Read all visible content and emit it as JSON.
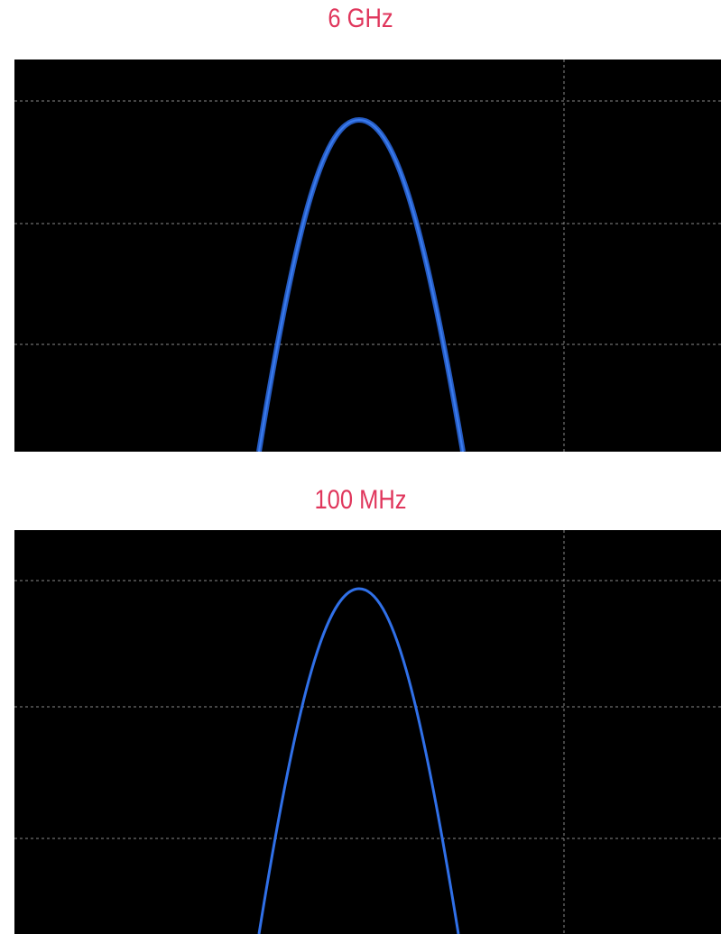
{
  "panels": [
    {
      "title": "6 GHz"
    },
    {
      "title": "100 MHz"
    }
  ]
}
